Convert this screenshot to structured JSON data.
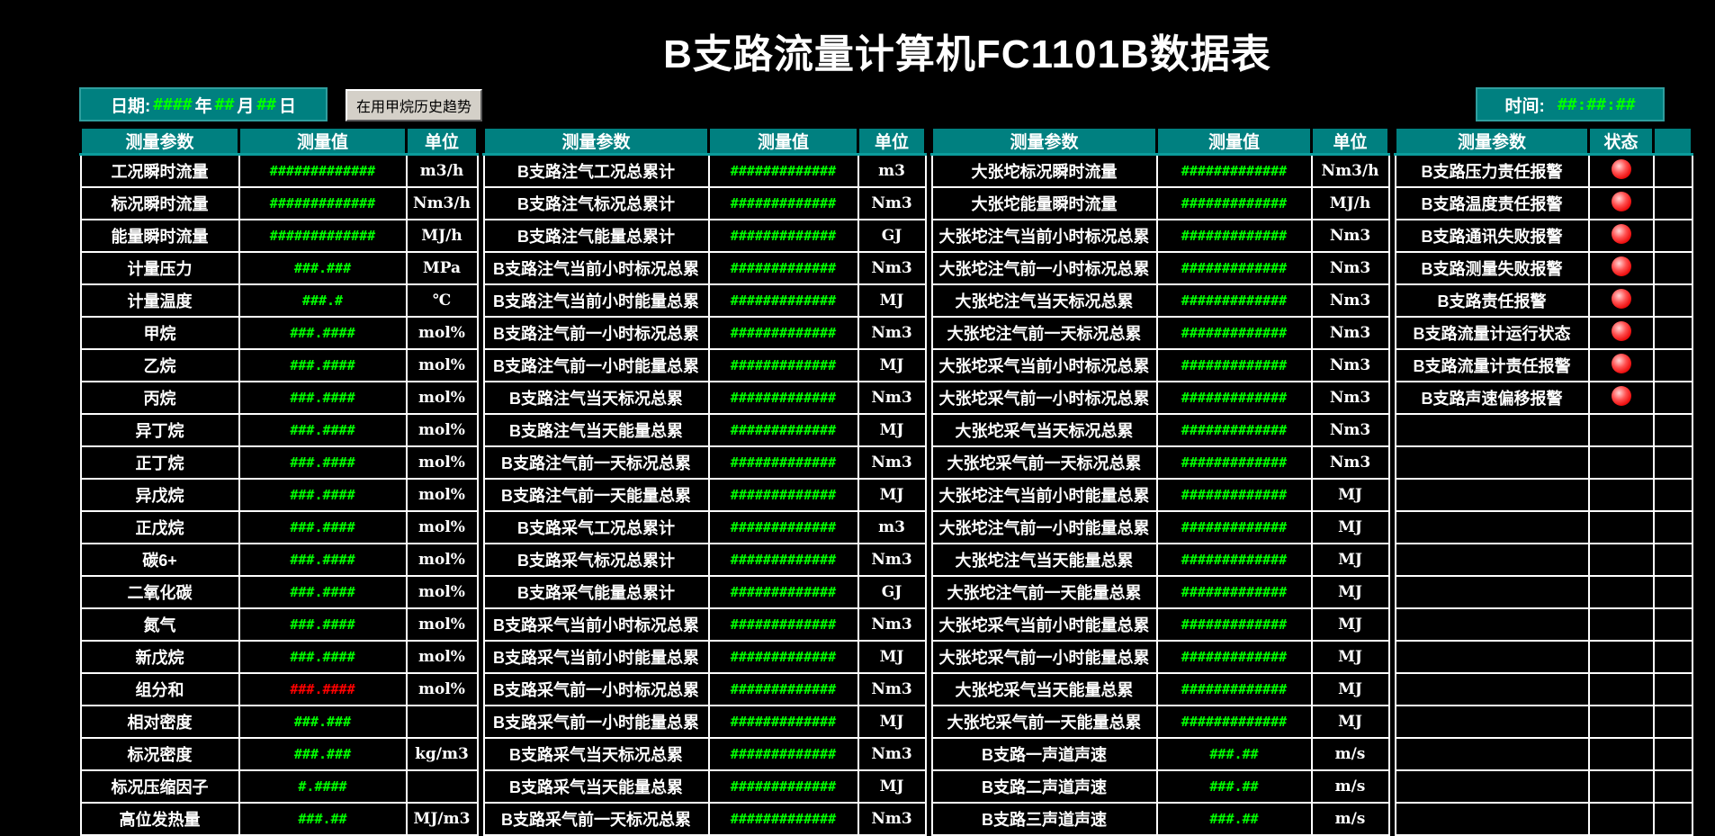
{
  "header": {
    "title": "B支路流量计算机FC1101B数据表"
  },
  "toolbar": {
    "date_label": "日期:",
    "date_year": "####",
    "date_year_suffix": "年",
    "date_month": "##",
    "date_month_suffix": "月",
    "date_day": "##",
    "date_day_suffix": "日",
    "trend_button_label": "在用甲烷历史趋势",
    "time_label": "时间:",
    "time_value": "##:##:##"
  },
  "colors": {
    "header_teal": "#008080",
    "value_green": "#00ff00",
    "alarm_value_red": "#ff0000",
    "led_red": "#ee1010",
    "grid_white": "#ffffff",
    "button_face": "#d4d0c8",
    "text_white": "#ffffff",
    "background": "#000000"
  },
  "table": {
    "groups": [
      {
        "name": "b-branch-measurements",
        "type": "pvu",
        "headers": [
          "测量参数",
          "测量值",
          "单位"
        ],
        "widths": [
          176,
          186,
          79
        ],
        "rows": [
          [
            "工况瞬时流量",
            "#############",
            "m3/h"
          ],
          [
            "标况瞬时流量",
            "#############",
            "Nm3/h"
          ],
          [
            "能量瞬时流量",
            "#############",
            "MJ/h"
          ],
          [
            "计量压力",
            "###.###",
            "MPa"
          ],
          [
            "计量温度",
            "###.#",
            "℃"
          ],
          [
            "甲烷",
            "###.####",
            "mol%"
          ],
          [
            "乙烷",
            "###.####",
            "mol%"
          ],
          [
            "丙烷",
            "###.####",
            "mol%"
          ],
          [
            "异丁烷",
            "###.####",
            "mol%"
          ],
          [
            "正丁烷",
            "###.####",
            "mol%"
          ],
          [
            "异戊烷",
            "###.####",
            "mol%"
          ],
          [
            "正戊烷",
            "###.####",
            "mol%"
          ],
          [
            "碳6+",
            "###.####",
            "mol%"
          ],
          [
            "二氧化碳",
            "###.####",
            "mol%"
          ],
          [
            "氮气",
            "###.####",
            "mol%"
          ],
          [
            "新戊烷",
            "###.####",
            "mol%"
          ],
          [
            "组分和",
            "###.####",
            "mol%",
            "red"
          ],
          [
            "相对密度",
            "###.###",
            ""
          ],
          [
            "标况密度",
            "###.###",
            "kg/m3"
          ],
          [
            "标况压缩因子",
            "#.####",
            ""
          ],
          [
            "高位发热量",
            "###.##",
            "MJ/m3"
          ]
        ]
      },
      {
        "name": "b-branch-totalizers",
        "type": "pvu",
        "headers": [
          "测量参数",
          "测量值",
          "单位"
        ],
        "widths": [
          250,
          166,
          75
        ],
        "rows": [
          [
            "B支路注气工况总累计",
            "#############",
            "m3"
          ],
          [
            "B支路注气标况总累计",
            "#############",
            "Nm3"
          ],
          [
            "B支路注气能量总累计",
            "#############",
            "GJ"
          ],
          [
            "B支路注气当前小时标况总累",
            "#############",
            "Nm3"
          ],
          [
            "B支路注气当前小时能量总累",
            "#############",
            "MJ"
          ],
          [
            "B支路注气前一小时标况总累",
            "#############",
            "Nm3"
          ],
          [
            "B支路注气前一小时能量总累",
            "#############",
            "MJ"
          ],
          [
            "B支路注气当天标况总累",
            "#############",
            "Nm3"
          ],
          [
            "B支路注气当天能量总累",
            "#############",
            "MJ"
          ],
          [
            "B支路注气前一天标况总累",
            "#############",
            "Nm3"
          ],
          [
            "B支路注气前一天能量总累",
            "#############",
            "MJ"
          ],
          [
            "B支路采气工况总累计",
            "#############",
            "m3"
          ],
          [
            "B支路采气标况总累计",
            "#############",
            "Nm3"
          ],
          [
            "B支路采气能量总累计",
            "#############",
            "GJ"
          ],
          [
            "B支路采气当前小时标况总累",
            "#############",
            "Nm3"
          ],
          [
            "B支路采气当前小时能量总累",
            "#############",
            "MJ"
          ],
          [
            "B支路采气前一小时标况总累",
            "#############",
            "Nm3"
          ],
          [
            "B支路采气前一小时能量总累",
            "#############",
            "MJ"
          ],
          [
            "B支路采气当天标况总累",
            "#############",
            "Nm3"
          ],
          [
            "B支路采气当天能量总累",
            "#############",
            "MJ"
          ],
          [
            "B支路采气前一天标况总累",
            "#############",
            "Nm3"
          ]
        ]
      },
      {
        "name": "dazhangtuo-totalizers",
        "type": "pvu",
        "headers": [
          "测量参数",
          "测量值",
          "单位"
        ],
        "widths": [
          250,
          172,
          86
        ],
        "rows": [
          [
            "大张坨标况瞬时流量",
            "#############",
            "Nm3/h"
          ],
          [
            "大张坨能量瞬时流量",
            "#############",
            "MJ/h"
          ],
          [
            "大张坨注气当前小时标况总累",
            "#############",
            "Nm3"
          ],
          [
            "大张坨注气前一小时标况总累",
            "#############",
            "Nm3"
          ],
          [
            "大张坨注气当天标况总累",
            "#############",
            "Nm3"
          ],
          [
            "大张坨注气前一天标况总累",
            "#############",
            "Nm3"
          ],
          [
            "大张坨采气当前小时标况总累",
            "#############",
            "Nm3"
          ],
          [
            "大张坨采气前一小时标况总累",
            "#############",
            "Nm3"
          ],
          [
            "大张坨采气当天标况总累",
            "#############",
            "Nm3"
          ],
          [
            "大张坨采气前一天标况总累",
            "#############",
            "Nm3"
          ],
          [
            "大张坨注气当前小时能量总累",
            "#############",
            "MJ"
          ],
          [
            "大张坨注气前一小时能量总累",
            "#############",
            "MJ"
          ],
          [
            "大张坨注气当天能量总累",
            "#############",
            "MJ"
          ],
          [
            "大张坨注气前一天能量总累",
            "#############",
            "MJ"
          ],
          [
            "大张坨采气当前小时能量总累",
            "#############",
            "MJ"
          ],
          [
            "大张坨采气前一小时能量总累",
            "#############",
            "MJ"
          ],
          [
            "大张坨采气当天能量总累",
            "#############",
            "MJ"
          ],
          [
            "大张坨采气前一天能量总累",
            "#############",
            "MJ"
          ],
          [
            "B支路一声道声速",
            "###.##",
            "m/s"
          ],
          [
            "B支路二声道声速",
            "###.##",
            "m/s"
          ],
          [
            "B支路三声道声速",
            "###.##",
            "m/s"
          ]
        ]
      },
      {
        "name": "b-branch-alarms",
        "type": "alarms",
        "headers": [
          "测量参数",
          "状态",
          ""
        ],
        "widths": [
          215,
          72,
          43
        ],
        "rows": [
          [
            "B支路压力责任报警",
            1
          ],
          [
            "B支路温度责任报警",
            1
          ],
          [
            "B支路通讯失败报警",
            1
          ],
          [
            "B支路测量失败报警",
            1
          ],
          [
            "B支路责任报警",
            1
          ],
          [
            "B支路流量计运行状态",
            1
          ],
          [
            "B支路流量计责任报警",
            1
          ],
          [
            "B支路声速偏移报警",
            1
          ],
          [
            "",
            0
          ],
          [
            "",
            0
          ],
          [
            "",
            0
          ],
          [
            "",
            0
          ],
          [
            "",
            0
          ],
          [
            "",
            0
          ],
          [
            "",
            0
          ],
          [
            "",
            0
          ],
          [
            "",
            0
          ],
          [
            "",
            0
          ],
          [
            "",
            0
          ],
          [
            "",
            0
          ],
          [
            "",
            0
          ]
        ]
      }
    ]
  }
}
